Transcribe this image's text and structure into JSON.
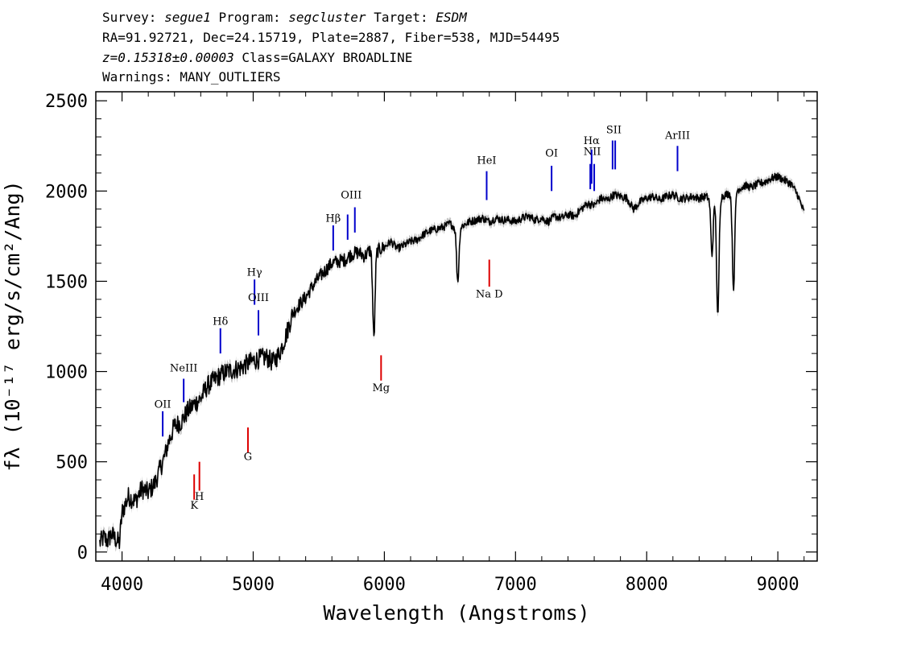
{
  "header": {
    "line1": {
      "survey_label": "Survey:",
      "survey": "segue1",
      "program_label": "Program:",
      "program": "segcluster",
      "target_label": "Target:",
      "target": "ESDM"
    },
    "line2": "RA=91.92721, Dec=24.15719, Plate=2887, Fiber=538, MJD=54495",
    "line3": {
      "redshift": "z=0.15318±0.00003",
      "class": "Class=GALAXY BROADLINE"
    },
    "line4": "Warnings: MANY_OUTLIERS"
  },
  "chart_data": {
    "type": "line",
    "xlabel": "Wavelength (Angstroms)",
    "ylabel": "fλ (10⁻¹⁷ erg/s/cm²/Ang)",
    "xlim": [
      3800,
      9300
    ],
    "ylim": [
      -50,
      2550
    ],
    "x_ticks": [
      4000,
      5000,
      6000,
      7000,
      8000,
      9000
    ],
    "y_ticks": [
      0,
      500,
      1000,
      1500,
      2000,
      2500
    ],
    "grid": false,
    "series": [
      {
        "color": "#000000",
        "x": [
          3830,
          3860,
          3890,
          3920,
          3950,
          3980,
          4000,
          4050,
          4100,
          4150,
          4200,
          4250,
          4300,
          4330,
          4350,
          4400,
          4450,
          4500,
          4550,
          4600,
          4650,
          4700,
          4750,
          4800,
          4850,
          4900,
          4950,
          5000,
          5050,
          5100,
          5150,
          5200,
          5250,
          5300,
          5350,
          5400,
          5450,
          5500,
          5550,
          5600,
          5650,
          5700,
          5750,
          5800,
          5850,
          5900,
          5950,
          6000,
          6050,
          6100,
          6150,
          6200,
          6250,
          6300,
          6350,
          6400,
          6450,
          6500,
          6550,
          6600,
          6650,
          6700,
          6750,
          6800,
          6850,
          6900,
          6950,
          7000,
          7050,
          7100,
          7150,
          7200,
          7250,
          7300,
          7350,
          7400,
          7450,
          7500,
          7550,
          7600,
          7650,
          7700,
          7750,
          7800,
          7850,
          7900,
          7950,
          8000,
          8050,
          8100,
          8150,
          8200,
          8250,
          8300,
          8350,
          8400,
          8450,
          8500,
          8550,
          8600,
          8650,
          8700,
          8750,
          8800,
          8850,
          8900,
          8950,
          9000,
          9050,
          9100,
          9150,
          9200
        ],
        "y": [
          50,
          80,
          60,
          100,
          70,
          50,
          220,
          310,
          280,
          350,
          330,
          380,
          480,
          540,
          600,
          700,
          720,
          780,
          820,
          850,
          920,
          950,
          980,
          1000,
          1010,
          1020,
          1040,
          1060,
          1070,
          1080,
          1050,
          1100,
          1200,
          1320,
          1370,
          1410,
          1470,
          1520,
          1560,
          1600,
          1610,
          1620,
          1650,
          1660,
          1640,
          1680,
          1670,
          1690,
          1720,
          1680,
          1700,
          1720,
          1730,
          1760,
          1780,
          1790,
          1800,
          1820,
          1790,
          1810,
          1830,
          1840,
          1850,
          1830,
          1850,
          1840,
          1840,
          1830,
          1850,
          1860,
          1840,
          1850,
          1830,
          1860,
          1850,
          1870,
          1860,
          1900,
          1930,
          1920,
          1960,
          1950,
          1980,
          1970,
          1960,
          1900,
          1940,
          1960,
          1970,
          1950,
          1970,
          1980,
          1960,
          1960,
          1970,
          1960,
          1970,
          1950,
          1960,
          1980,
          1990,
          2010,
          2030,
          2020,
          2040,
          2050,
          2070,
          2080,
          2060,
          2040,
          1980,
          1880
        ],
        "absorption_features": [
          {
            "x": 5920,
            "y": 1190
          },
          {
            "x": 6560,
            "y": 1500
          },
          {
            "x": 8498,
            "y": 1650
          },
          {
            "x": 8542,
            "y": 1300
          },
          {
            "x": 8662,
            "y": 1460
          }
        ]
      }
    ],
    "emission_lines": [
      {
        "label": "OII",
        "x": 4310,
        "y_bottom": 640,
        "y_top": 780,
        "label_y": 800
      },
      {
        "label": "NeIII",
        "x": 4470,
        "y_bottom": 830,
        "y_top": 960,
        "label_y": 1000
      },
      {
        "label": "Hδ",
        "x": 4750,
        "y_bottom": 1100,
        "y_top": 1240,
        "label_y": 1260
      },
      {
        "label": "Hγ",
        "x": 5010,
        "y_bottom": 1370,
        "y_top": 1510,
        "label_y": 1530
      },
      {
        "label": "OIII",
        "x": 5040,
        "y_bottom": 1200,
        "y_top": 1340,
        "label_y": 1390
      },
      {
        "label": "Hβ",
        "x": 5610,
        "y_bottom": 1670,
        "y_top": 1810,
        "label_y": 1830
      },
      {
        "label": "OIII",
        "x": 5720,
        "y_bottom": 1730,
        "y_top": 1870,
        "label_y": 1960
      },
      {
        "label": "OIII",
        "x": 5775,
        "y_bottom": 1770,
        "y_top": 1910,
        "label_y": 1960
      },
      {
        "label": "HeI",
        "x": 6780,
        "y_bottom": 1950,
        "y_top": 2110,
        "label_y": 2150
      },
      {
        "label": "OI",
        "x": 7275,
        "y_bottom": 2000,
        "y_top": 2140,
        "label_y": 2190
      },
      {
        "label": "NII",
        "x": 7570,
        "y_bottom": 2010,
        "y_top": 2150,
        "label_y": 2200
      },
      {
        "label": "Hα",
        "x": 7580,
        "y_bottom": 2040,
        "y_top": 2230,
        "label_y": 2260
      },
      {
        "label": "NII",
        "x": 7600,
        "y_bottom": 2000,
        "y_top": 2150,
        "label_y": 2200
      },
      {
        "label": "SII",
        "x": 7740,
        "y_bottom": 2120,
        "y_top": 2280,
        "label_y": 2320
      },
      {
        "label": "SII",
        "x": 7760,
        "y_bottom": 2120,
        "y_top": 2280,
        "label_y": 2320
      },
      {
        "label": "ArIII",
        "x": 8235,
        "y_bottom": 2110,
        "y_top": 2250,
        "label_y": 2290
      }
    ],
    "absorption_lines": [
      {
        "label": "K",
        "x": 4550,
        "y_bottom": 290,
        "y_top": 430,
        "label_y": 240
      },
      {
        "label": "H",
        "x": 4590,
        "y_bottom": 340,
        "y_top": 500,
        "label_y": 290
      },
      {
        "label": "G",
        "x": 4960,
        "y_bottom": 550,
        "y_top": 690,
        "label_y": 510
      },
      {
        "label": "Mg",
        "x": 5975,
        "y_bottom": 950,
        "y_top": 1090,
        "label_y": 890
      },
      {
        "label": "Na D",
        "x": 6800,
        "y_bottom": 1470,
        "y_top": 1620,
        "label_y": 1410
      }
    ],
    "line_colors": {
      "emission": "#0000cc",
      "absorption": "#dd0000",
      "spectrum": "#000000",
      "error": "#b4b4b4"
    }
  }
}
